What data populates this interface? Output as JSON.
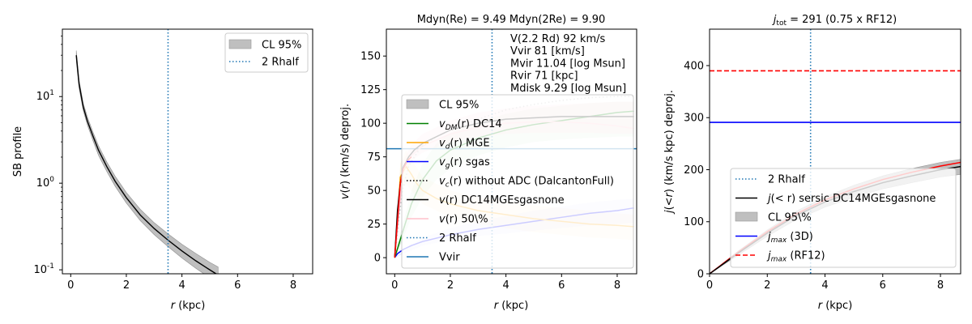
{
  "colors": {
    "cl_fill": "#bfbfbf",
    "rhalf": "#1f77b4",
    "vdm": "#008000",
    "vd": "#ffa500",
    "vg": "#0000ff",
    "vc": "#000000",
    "v": "#000000",
    "v50": "#ffc0cb",
    "vvir": "#1f77b4",
    "jmax3d": "#0000ff",
    "jmaxrf12": "#ff0000",
    "jfit": "#000000"
  },
  "chart_data": [
    {
      "type": "line",
      "title": "",
      "xlabel": "r (kpc)",
      "ylabel": "SB profile",
      "yscale": "log",
      "xlim": [
        -0.3,
        8.7
      ],
      "ylim": [
        0.09,
        60
      ],
      "xticks": [
        "0",
        "2",
        "4",
        "6",
        "8"
      ],
      "yticks": [
        "10^{-1}",
        "10^{0}",
        "10^{1}"
      ],
      "legend_location": "upper right",
      "legend": [
        {
          "label": "CL 95%",
          "style": "patch"
        },
        {
          "label": "2 Rhalf",
          "style": "dotted"
        }
      ],
      "rhalf2_x": 3.5,
      "series": [
        {
          "name": "SB",
          "x": [
            0.2,
            0.3,
            0.45,
            0.6,
            0.8,
            1.0,
            1.3,
            1.6,
            2.0,
            2.5,
            3.0,
            3.5,
            4.0,
            4.5,
            5.0,
            5.3
          ],
          "values": [
            30,
            14,
            7.6,
            5.2,
            3.5,
            2.4,
            1.55,
            1.05,
            0.68,
            0.43,
            0.3,
            0.22,
            0.165,
            0.127,
            0.1,
            0.087
          ],
          "band_low": [
            26,
            12.5,
            6.9,
            4.7,
            3.1,
            2.1,
            1.36,
            0.92,
            0.59,
            0.37,
            0.255,
            0.185,
            0.137,
            0.104,
            0.081,
            0.07
          ],
          "band_high": [
            34,
            15.5,
            8.4,
            5.8,
            3.9,
            2.7,
            1.75,
            1.2,
            0.78,
            0.5,
            0.35,
            0.26,
            0.197,
            0.154,
            0.122,
            0.108
          ]
        }
      ]
    },
    {
      "type": "line",
      "title": "Mdyn(Re) = 9.49  Mdyn(2Re) = 9.90",
      "xlabel": "r (kpc)",
      "ylabel": "v(r) (km/s) deproj.",
      "xlim": [
        -0.3,
        8.7
      ],
      "ylim": [
        -12,
        170
      ],
      "xticks": [
        "0",
        "2",
        "4",
        "6",
        "8"
      ],
      "yticks": [
        "0",
        "25",
        "50",
        "75",
        "100",
        "125",
        "150"
      ],
      "annotations": [
        "V(2.2 Rd) 92 km/s",
        "Vvir 81 [km/s]",
        "Mvir 11.04 [log Msun]",
        "Rvir 71 [kpc]",
        "Mdisk 9.29 [log Msun]"
      ],
      "legend_location": "center",
      "legend": [
        {
          "label": "CL 95%",
          "style": "patch"
        },
        {
          "label": "v_DM(r) DC14",
          "style": "solid",
          "color": "vdm",
          "math": true,
          "pre": "v",
          "sub": "DM",
          "post": "(r) DC14"
        },
        {
          "label": "v_d(r) MGE",
          "style": "solid",
          "color": "vd",
          "math": true,
          "pre": "v",
          "sub": "d",
          "post": "(r) MGE"
        },
        {
          "label": "v_g(r) sgas",
          "style": "solid",
          "color": "vg",
          "math": true,
          "pre": "v",
          "sub": "g",
          "post": "(r) sgas"
        },
        {
          "label": "v_c(r) without ADC (DalcantonFull)",
          "style": "dotted",
          "color": "vc",
          "math": true,
          "pre": "v",
          "sub": "c",
          "post": "(r) without ADC (DalcantonFull)"
        },
        {
          "label": "v(r) DC14MGEsgasnone",
          "style": "solid",
          "color": "v",
          "math": true,
          "pre": "v",
          "sub": "",
          "post": "(r) DC14MGEsgasnone"
        },
        {
          "label": "v(r) 50\\%",
          "style": "solid",
          "color": "v50",
          "math": true,
          "pre": "v",
          "sub": "",
          "post": "(r) 50\\%"
        },
        {
          "label": "2 Rhalf",
          "style": "dotted",
          "color": "rhalf"
        },
        {
          "label": "Vvir",
          "style": "solid",
          "color": "vvir"
        }
      ],
      "rhalf2_x": 3.5,
      "vvir": 81,
      "series": [
        {
          "name": "vDM",
          "x": [
            0,
            0.3,
            0.6,
            1,
            1.5,
            2,
            3,
            4,
            5,
            6,
            7,
            8,
            8.6
          ],
          "values": [
            0,
            20,
            40,
            58,
            72,
            80,
            89,
            95,
            99,
            102,
            105,
            108,
            109
          ]
        },
        {
          "name": "vDM_band",
          "x": [
            0,
            0.3,
            0.6,
            1,
            1.5,
            2,
            3,
            4,
            5,
            6,
            7,
            8,
            8.6
          ],
          "low": [
            0,
            14,
            30,
            45,
            58,
            66,
            76,
            82,
            86,
            88,
            89,
            90,
            90
          ],
          "high": [
            0,
            26,
            50,
            70,
            85,
            93,
            101,
            107,
            111,
            113,
            115,
            116,
            116
          ]
        },
        {
          "name": "vd",
          "x": [
            0,
            0.2,
            0.4,
            0.6,
            0.8,
            1,
            1.5,
            2,
            3,
            4,
            5,
            6,
            7,
            8,
            8.6
          ],
          "values": [
            0,
            60,
            68,
            62,
            55,
            50,
            44,
            40,
            35,
            32,
            29,
            27,
            25,
            24,
            23
          ]
        },
        {
          "name": "vd_band",
          "x": [
            0,
            0.2,
            0.4,
            1,
            2,
            3,
            4,
            5,
            6,
            7,
            8,
            8.6
          ],
          "low": [
            0,
            48,
            55,
            40,
            30,
            25,
            22,
            19,
            17,
            15,
            14,
            13
          ],
          "high": [
            0,
            70,
            80,
            60,
            50,
            45,
            42,
            39,
            37,
            35,
            33,
            32
          ]
        },
        {
          "name": "vg",
          "x": [
            0,
            0.1,
            0.3,
            0.6,
            1,
            2,
            3,
            4,
            5,
            6,
            7,
            8,
            8.6
          ],
          "values": [
            0,
            3,
            6,
            9,
            12,
            17,
            21,
            24,
            27,
            30,
            33,
            35,
            37
          ]
        },
        {
          "name": "vg_band",
          "x": [
            0,
            1,
            2,
            3,
            4,
            5,
            6,
            7,
            8,
            8.6
          ],
          "low": [
            0,
            9,
            13,
            16,
            18,
            20,
            22,
            24,
            25,
            26
          ],
          "high": [
            0,
            15,
            22,
            27,
            31,
            35,
            38,
            41,
            43,
            44
          ]
        },
        {
          "name": "vc",
          "x": [
            0,
            0.15,
            0.3,
            0.5,
            0.8,
            1,
            1.5,
            2,
            3,
            4,
            5,
            6,
            7,
            8,
            8.6
          ],
          "values": [
            0,
            30,
            52,
            68,
            78,
            83,
            90,
            95,
            103,
            110,
            114,
            117,
            119,
            120,
            120
          ]
        },
        {
          "name": "v",
          "x": [
            0,
            0.1,
            0.2,
            0.3,
            0.5,
            0.7,
            1,
            1.5,
            2,
            3,
            4,
            5,
            6,
            7,
            8,
            8.6
          ],
          "values": [
            0,
            35,
            55,
            67,
            75,
            80,
            85,
            90,
            95,
            100,
            103,
            104,
            105,
            105,
            105,
            105
          ]
        },
        {
          "name": "v_band",
          "x": [
            0,
            0.3,
            0.6,
            1,
            2,
            3,
            4,
            5,
            6,
            7,
            8,
            8.6
          ],
          "low": [
            0,
            62,
            72,
            78,
            86,
            90,
            92,
            93,
            93,
            93,
            92,
            92
          ],
          "high": [
            0,
            72,
            84,
            92,
            102,
            108,
            111,
            113,
            114,
            115,
            116,
            116
          ]
        },
        {
          "name": "v50",
          "x": [
            0,
            0.3,
            0.6,
            1,
            2,
            3,
            4,
            5,
            6,
            7,
            8,
            8.6
          ],
          "values": [
            0,
            65,
            76,
            83,
            92,
            97,
            100,
            101,
            101,
            100,
            98,
            96
          ]
        },
        {
          "name": "vfit_red",
          "x": [
            0,
            0.2,
            0.3,
            0.45,
            0.6
          ],
          "values": [
            0,
            55,
            66,
            72,
            75
          ]
        }
      ]
    },
    {
      "type": "line",
      "title": "j_tot = 291 (0.75 x RF12)",
      "title_parts": {
        "sym": "j",
        "sub": "tot",
        "rest": " = 291 (0.75 x RF12)"
      },
      "xlabel": "r (kpc)",
      "ylabel": "j(<r) (km/s kpc) deproj.",
      "xlim": [
        0,
        8.7
      ],
      "ylim": [
        0,
        470
      ],
      "xticks": [
        "0",
        "2",
        "4",
        "6",
        "8"
      ],
      "yticks": [
        "0",
        "100",
        "200",
        "300",
        "400"
      ],
      "legend_location": "lower right",
      "legend": [
        {
          "label": "2 Rhalf",
          "style": "dotted",
          "color": "rhalf"
        },
        {
          "label": "j(<r) sersic DC14MGEsgasnone",
          "style": "solid",
          "color": "jfit",
          "math": true,
          "pre": "j",
          "sub": "",
          "post": "(< r) sersic DC14MGEsgasnone"
        },
        {
          "label": "CL 95\\%",
          "style": "patch"
        },
        {
          "label": "j_max (3D)",
          "style": "solid",
          "color": "jmax3d",
          "math": true,
          "pre": "j",
          "sub": "max",
          "post": " (3D)"
        },
        {
          "label": "j_max (RF12)",
          "style": "dashed",
          "color": "jmaxrf12",
          "math": true,
          "pre": "j",
          "sub": "max",
          "post": " (RF12)"
        }
      ],
      "rhalf2_x": 3.5,
      "jmax_3d": 291,
      "jmax_rf12": 390,
      "series": [
        {
          "name": "j",
          "x": [
            0,
            0.5,
            1,
            2,
            3,
            4,
            5,
            6,
            7,
            8,
            8.7
          ],
          "values": [
            0,
            20,
            40,
            78,
            112,
            138,
            158,
            175,
            188,
            200,
            206
          ],
          "band_low": [
            0,
            18,
            36,
            72,
            104,
            128,
            147,
            163,
            175,
            186,
            191
          ],
          "band_high": [
            0,
            22,
            44,
            84,
            120,
            148,
            170,
            188,
            202,
            214,
            220
          ]
        },
        {
          "name": "j_red",
          "x": [
            0,
            0.5,
            1,
            2,
            3,
            4,
            5,
            6,
            7,
            8,
            8.7
          ],
          "values": [
            0,
            21,
            42,
            81,
            115,
            142,
            163,
            181,
            195,
            207,
            214
          ]
        }
      ]
    }
  ]
}
